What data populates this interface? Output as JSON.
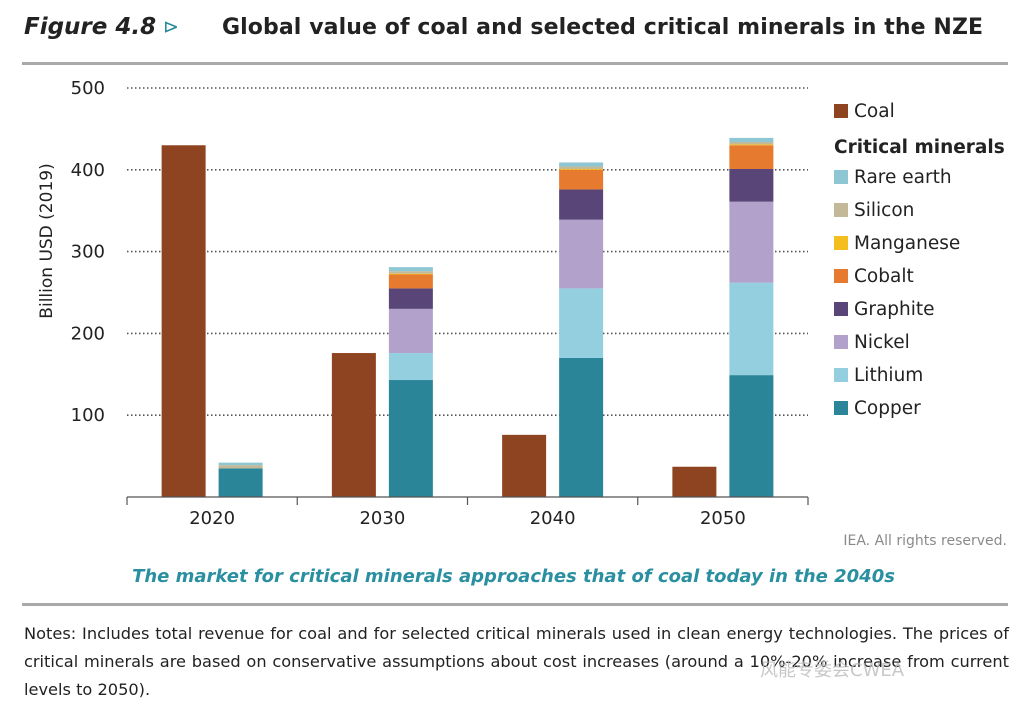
{
  "header": {
    "figure_label": "Figure 4.8",
    "arrow": "⊳",
    "title": "Global value of coal and selected critical minerals in the NZE"
  },
  "chart_data": {
    "type": "bar",
    "title": "Global value of coal and selected critical minerals in the NZE",
    "ylabel": "Billion USD (2019)",
    "xlabel": "",
    "ylim": [
      0,
      500
    ],
    "yticks": [
      100,
      200,
      300,
      400,
      500
    ],
    "categories": [
      "2020",
      "2030",
      "2040",
      "2050"
    ],
    "coal": {
      "name": "Coal",
      "color": "#8f4421",
      "values": [
        430,
        176,
        76,
        37
      ]
    },
    "critical_minerals_label": "Critical minerals",
    "series": [
      {
        "name": "Copper",
        "color": "#2a8599",
        "values": [
          35,
          143,
          170,
          149
        ]
      },
      {
        "name": "Lithium",
        "color": "#94cfe0",
        "values": [
          0,
          33,
          85,
          113
        ]
      },
      {
        "name": "Nickel",
        "color": "#b1a1cb",
        "values": [
          0,
          54,
          84,
          99
        ]
      },
      {
        "name": "Graphite",
        "color": "#5a4578",
        "values": [
          0,
          25,
          37,
          40
        ]
      },
      {
        "name": "Cobalt",
        "color": "#e67a2e",
        "values": [
          0,
          17,
          24,
          29
        ]
      },
      {
        "name": "Manganese",
        "color": "#f5be1f",
        "values": [
          0,
          1,
          1,
          1
        ]
      },
      {
        "name": "Silicon",
        "color": "#c3b998",
        "values": [
          4,
          3,
          3,
          3
        ]
      },
      {
        "name": "Rare earth",
        "color": "#8ec6d3",
        "values": [
          3,
          5,
          5,
          5
        ]
      }
    ],
    "legend_order": [
      "Rare earth",
      "Silicon",
      "Manganese",
      "Cobalt",
      "Graphite",
      "Nickel",
      "Lithium",
      "Copper"
    ],
    "grid": "dotted horizontal",
    "legend_position": "right"
  },
  "credit": "IEA. All rights reserved.",
  "subtitle": "The market for critical minerals approaches that of coal today in the 2040s",
  "notes": "Notes: Includes total revenue for coal and for selected critical minerals used in clean energy technologies. The prices of critical minerals are based on conservative assumptions about cost increases (around a 10%-20% increase from current levels to 2050).",
  "watermark": "风能专委会CWEA"
}
